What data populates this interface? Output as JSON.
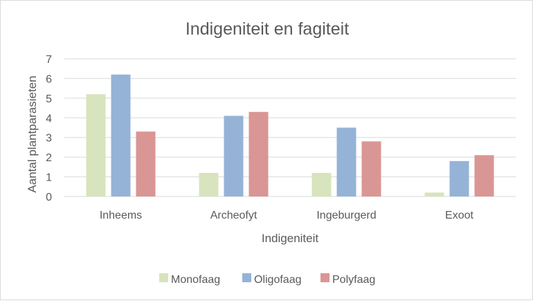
{
  "chart_data": {
    "type": "bar",
    "title": "Indigeniteit en fagiteit",
    "xlabel": "Indigeniteit",
    "ylabel": "Aantal plantparasieten",
    "categories": [
      "Inheems",
      "Archeofyt",
      "Ingeburgerd",
      "Exoot"
    ],
    "series": [
      {
        "name": "Monofaag",
        "color": "#d7e4bd",
        "values": [
          5.2,
          1.2,
          1.2,
          0.2
        ]
      },
      {
        "name": "Oligofaag",
        "color": "#95b3d7",
        "values": [
          6.2,
          4.1,
          3.5,
          1.8
        ]
      },
      {
        "name": "Polyfaag",
        "color": "#d99694",
        "values": [
          3.3,
          4.3,
          2.8,
          2.1
        ]
      }
    ],
    "ylim": [
      0,
      7
    ],
    "yticks": [
      0,
      1,
      2,
      3,
      4,
      5,
      6,
      7
    ],
    "grid": true,
    "legend_position": "bottom",
    "gridline_color": "#d9d9d9",
    "text_color": "#595959"
  }
}
